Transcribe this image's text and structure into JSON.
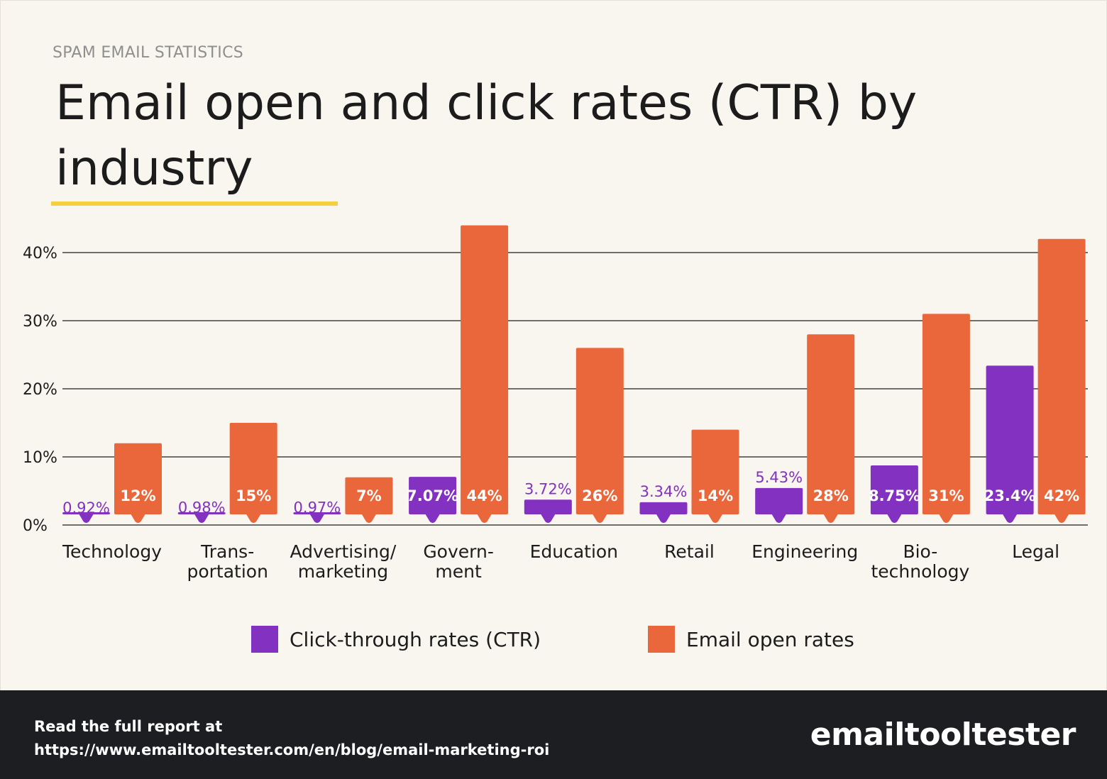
{
  "header": {
    "eyebrow": "SPAM EMAIL STATISTICS",
    "title": "Email open and click rates (CTR) by industry"
  },
  "colors": {
    "ctr": "#8231c1",
    "open": "#e9673b",
    "accent": "#f4d03f",
    "background": "#f9f6f0",
    "footer": "#1d1e21"
  },
  "chart_data": {
    "type": "bar",
    "title": "Email open and click rates (CTR) by industry",
    "xlabel": "",
    "ylabel": "",
    "ylim": [
      0,
      45
    ],
    "yticks": [
      0,
      10,
      20,
      30,
      40
    ],
    "ytick_labels": [
      "0%",
      "10%",
      "20%",
      "30%",
      "40%"
    ],
    "grid": true,
    "legend_position": "bottom",
    "categories": [
      [
        "Technology"
      ],
      [
        "Trans-",
        "portation"
      ],
      [
        "Advertising/",
        "marketing"
      ],
      [
        "Govern-",
        "ment"
      ],
      [
        "Education"
      ],
      [
        "Retail"
      ],
      [
        "Engineering"
      ],
      [
        "Bio-",
        "technology"
      ],
      [
        "Legal"
      ]
    ],
    "series": [
      {
        "name": "Click-through rates (CTR)",
        "values": [
          0.92,
          0.98,
          0.97,
          7.07,
          3.72,
          3.34,
          5.43,
          8.75,
          23.4
        ],
        "labels": [
          "0.92%",
          "0.98%",
          "0.97%",
          "7.07%",
          "3.72%",
          "3.34%",
          "5.43%",
          "8.75%",
          "23.4%"
        ]
      },
      {
        "name": "Email open rates",
        "values": [
          12,
          15,
          7,
          44,
          26,
          14,
          28,
          31,
          42
        ],
        "labels": [
          "12%",
          "15%",
          "7%",
          "44%",
          "26%",
          "14%",
          "28%",
          "31%",
          "42%"
        ]
      }
    ]
  },
  "legend": {
    "ctr_label": "Click-through rates (CTR)",
    "open_label": "Email open rates"
  },
  "footer": {
    "line1": "Read the full report at",
    "line2": "https://www.emailtooltester.com/en/blog/email-marketing-roi",
    "brand": "emailtooltester"
  }
}
